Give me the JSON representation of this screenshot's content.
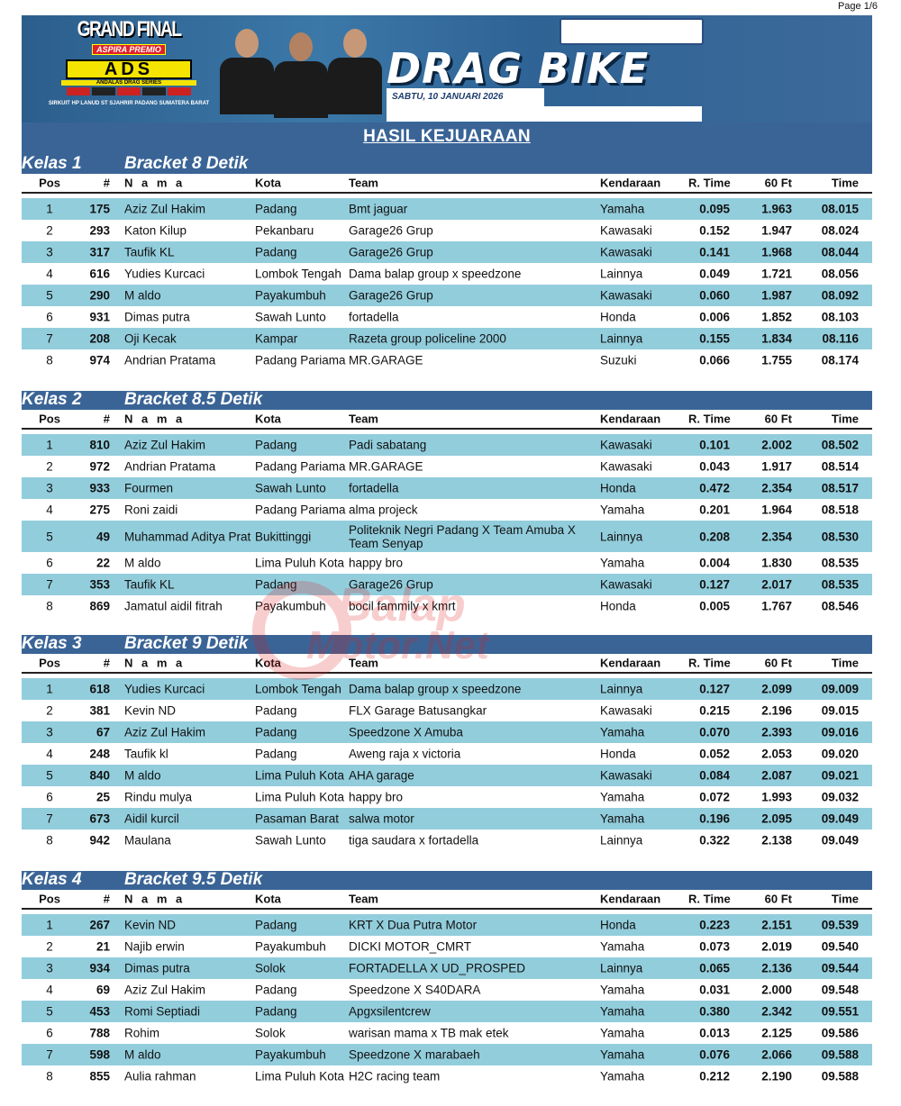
{
  "page_number": "Page 1/6",
  "banner": {
    "grand_final": "GRAND FINAL",
    "aspira": "ASPIRA PREMIO",
    "ads": "ADS",
    "ads_full": "ANDALAS DRAG SERIES",
    "circuit": "SIRKUIT HP LANUD ST SJAHRIR PADANG SUMATERA BARAT",
    "event": "DRAG BIKE",
    "date": "SABTU, 10 JANUARI 2026"
  },
  "title": "HASIL KEJUARAAN",
  "watermark": "BalapMotor.Net",
  "columns": {
    "pos": "Pos",
    "num": "#",
    "name": "N a m a",
    "kota": "Kota",
    "team": "Team",
    "kend": "Kendaraan",
    "rt": "R. Time",
    "ft60": "60 Ft",
    "time": "Time"
  },
  "colors": {
    "header_blue": "#3a6496",
    "row_alt": "#92cddc"
  },
  "sections": [
    {
      "kelas": "Kelas  1",
      "bracket": "Bracket 8 Detik",
      "rows": [
        {
          "pos": "1",
          "num": "175",
          "name": "Aziz Zul Hakim",
          "kota": "Padang",
          "team": "Bmt jaguar",
          "kend": "Yamaha",
          "rt": "0.095",
          "ft60": "1.963",
          "time": "08.015"
        },
        {
          "pos": "2",
          "num": "293",
          "name": "Katon Kilup",
          "kota": "Pekanbaru",
          "team": "Garage26 Grup",
          "kend": "Kawasaki",
          "rt": "0.152",
          "ft60": "1.947",
          "time": "08.024"
        },
        {
          "pos": "3",
          "num": "317",
          "name": "Taufik KL",
          "kota": "Padang",
          "team": "Garage26 Grup",
          "kend": "Kawasaki",
          "rt": "0.141",
          "ft60": "1.968",
          "time": "08.044"
        },
        {
          "pos": "4",
          "num": "616",
          "name": "Yudies Kurcaci",
          "kota": "Lombok Tengah",
          "team": "Dama balap group x speedzone",
          "kend": "Lainnya",
          "rt": "0.049",
          "ft60": "1.721",
          "time": "08.056"
        },
        {
          "pos": "5",
          "num": "290",
          "name": "M aldo",
          "kota": "Payakumbuh",
          "team": "Garage26 Grup",
          "kend": "Kawasaki",
          "rt": "0.060",
          "ft60": "1.987",
          "time": "08.092"
        },
        {
          "pos": "6",
          "num": "931",
          "name": "Dimas putra",
          "kota": "Sawah Lunto",
          "team": "fortadella",
          "kend": "Honda",
          "rt": "0.006",
          "ft60": "1.852",
          "time": "08.103"
        },
        {
          "pos": "7",
          "num": "208",
          "name": "Oji Kecak",
          "kota": "Kampar",
          "team": "Razeta group policeline 2000",
          "kend": "Lainnya",
          "rt": "0.155",
          "ft60": "1.834",
          "time": "08.116"
        },
        {
          "pos": "8",
          "num": "974",
          "name": "Andrian Pratama",
          "kota": "Padang Pariama",
          "team": "MR.GARAGE",
          "kend": "Suzuki",
          "rt": "0.066",
          "ft60": "1.755",
          "time": "08.174"
        }
      ]
    },
    {
      "kelas": "Kelas  2",
      "bracket": "Bracket 8.5 Detik",
      "rows": [
        {
          "pos": "1",
          "num": "810",
          "name": "Aziz Zul Hakim",
          "kota": "Padang",
          "team": "Padi sabatang",
          "kend": "Kawasaki",
          "rt": "0.101",
          "ft60": "2.002",
          "time": "08.502"
        },
        {
          "pos": "2",
          "num": "972",
          "name": "Andrian Pratama",
          "kota": "Padang Pariama",
          "team": "MR.GARAGE",
          "kend": "Kawasaki",
          "rt": "0.043",
          "ft60": "1.917",
          "time": "08.514"
        },
        {
          "pos": "3",
          "num": "933",
          "name": "Fourmen",
          "kota": "Sawah Lunto",
          "team": "fortadella",
          "kend": "Honda",
          "rt": "0.472",
          "ft60": "2.354",
          "time": "08.517"
        },
        {
          "pos": "4",
          "num": "275",
          "name": "Roni zaidi",
          "kota": "Padang Pariama",
          "team": "alma projeck",
          "kend": "Yamaha",
          "rt": "0.201",
          "ft60": "1.964",
          "time": "08.518"
        },
        {
          "pos": "5",
          "num": "49",
          "name": "Muhammad Aditya Prat",
          "kota": "Bukittinggi",
          "team": "Politeknik Negri Padang X Team Amuba X Team Senyap",
          "kend": "Lainnya",
          "rt": "0.208",
          "ft60": "2.354",
          "time": "08.530"
        },
        {
          "pos": "6",
          "num": "22",
          "name": "M aldo",
          "kota": "Lima Puluh Kota",
          "team": "happy bro",
          "kend": "Yamaha",
          "rt": "0.004",
          "ft60": "1.830",
          "time": "08.535"
        },
        {
          "pos": "7",
          "num": "353",
          "name": "Taufik KL",
          "kota": "Padang",
          "team": "Garage26 Grup",
          "kend": "Kawasaki",
          "rt": "0.127",
          "ft60": "2.017",
          "time": "08.535"
        },
        {
          "pos": "8",
          "num": "869",
          "name": "Jamatul aidil fitrah",
          "kota": "Payakumbuh",
          "team": "bocil fammily x kmrt",
          "kend": "Honda",
          "rt": "0.005",
          "ft60": "1.767",
          "time": "08.546"
        }
      ]
    },
    {
      "kelas": "Kelas  3",
      "bracket": "Bracket 9 Detik",
      "rows": [
        {
          "pos": "1",
          "num": "618",
          "name": "Yudies Kurcaci",
          "kota": "Lombok Tengah",
          "team": "Dama balap group x speedzone",
          "kend": "Lainnya",
          "rt": "0.127",
          "ft60": "2.099",
          "time": "09.009"
        },
        {
          "pos": "2",
          "num": "381",
          "name": "Kevin ND",
          "kota": "Padang",
          "team": "FLX Garage Batusangkar",
          "kend": "Kawasaki",
          "rt": "0.215",
          "ft60": "2.196",
          "time": "09.015"
        },
        {
          "pos": "3",
          "num": "67",
          "name": "Aziz Zul Hakim",
          "kota": "Padang",
          "team": "Speedzone X Amuba",
          "kend": "Yamaha",
          "rt": "0.070",
          "ft60": "2.393",
          "time": "09.016"
        },
        {
          "pos": "4",
          "num": "248",
          "name": "Taufik kl",
          "kota": "Padang",
          "team": "Aweng raja x victoria",
          "kend": "Honda",
          "rt": "0.052",
          "ft60": "2.053",
          "time": "09.020"
        },
        {
          "pos": "5",
          "num": "840",
          "name": "M aldo",
          "kota": "Lima Puluh Kota",
          "team": "AHA garage",
          "kend": "Kawasaki",
          "rt": "0.084",
          "ft60": "2.087",
          "time": "09.021"
        },
        {
          "pos": "6",
          "num": "25",
          "name": "Rindu mulya",
          "kota": "Lima Puluh Kota",
          "team": "happy bro",
          "kend": "Yamaha",
          "rt": "0.072",
          "ft60": "1.993",
          "time": "09.032"
        },
        {
          "pos": "7",
          "num": "673",
          "name": "Aidil kurcil",
          "kota": "Pasaman Barat",
          "team": "salwa motor",
          "kend": "Yamaha",
          "rt": "0.196",
          "ft60": "2.095",
          "time": "09.049"
        },
        {
          "pos": "8",
          "num": "942",
          "name": "Maulana",
          "kota": "Sawah Lunto",
          "team": "tiga saudara x fortadella",
          "kend": "Lainnya",
          "rt": "0.322",
          "ft60": "2.138",
          "time": "09.049"
        }
      ]
    },
    {
      "kelas": "Kelas  4",
      "bracket": "Bracket 9.5 Detik",
      "rows": [
        {
          "pos": "1",
          "num": "267",
          "name": "Kevin ND",
          "kota": "Padang",
          "team": "KRT X Dua Putra Motor",
          "kend": "Honda",
          "rt": "0.223",
          "ft60": "2.151",
          "time": "09.539"
        },
        {
          "pos": "2",
          "num": "21",
          "name": "Najib erwin",
          "kota": "Payakumbuh",
          "team": "DICKI MOTOR_CMRT",
          "kend": "Yamaha",
          "rt": "0.073",
          "ft60": "2.019",
          "time": "09.540"
        },
        {
          "pos": "3",
          "num": "934",
          "name": "Dimas putra",
          "kota": "Solok",
          "team": "FORTADELLA X UD_PROSPED",
          "kend": "Lainnya",
          "rt": "0.065",
          "ft60": "2.136",
          "time": "09.544"
        },
        {
          "pos": "4",
          "num": "69",
          "name": "Aziz Zul Hakim",
          "kota": "Padang",
          "team": "Speedzone X S40DARA",
          "kend": "Yamaha",
          "rt": "0.031",
          "ft60": "2.000",
          "time": "09.548"
        },
        {
          "pos": "5",
          "num": "453",
          "name": "Romi Septiadi",
          "kota": "Padang",
          "team": "Apgxsilentcrew",
          "kend": "Yamaha",
          "rt": "0.380",
          "ft60": "2.342",
          "time": "09.551"
        },
        {
          "pos": "6",
          "num": "788",
          "name": "Rohim",
          "kota": "Solok",
          "team": "warisan mama x TB mak etek",
          "kend": "Yamaha",
          "rt": "0.013",
          "ft60": "2.125",
          "time": "09.586"
        },
        {
          "pos": "7",
          "num": "598",
          "name": "M aldo",
          "kota": "Payakumbuh",
          "team": "Speedzone X marabaeh",
          "kend": "Yamaha",
          "rt": "0.076",
          "ft60": "2.066",
          "time": "09.588"
        },
        {
          "pos": "8",
          "num": "855",
          "name": "Aulia rahman",
          "kota": "Lima Puluh Kota",
          "team": "H2C racing team",
          "kend": "Yamaha",
          "rt": "0.212",
          "ft60": "2.190",
          "time": "09.588"
        }
      ]
    }
  ]
}
